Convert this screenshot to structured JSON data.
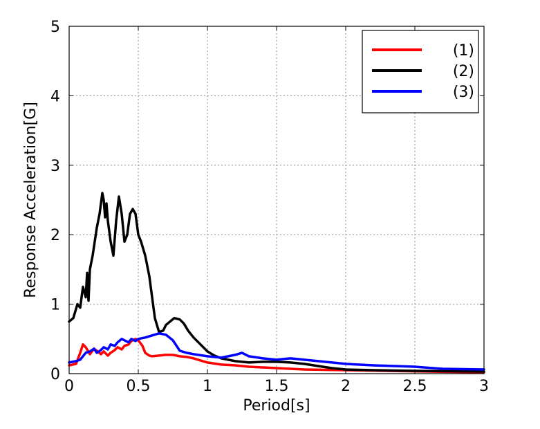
{
  "chart_data": {
    "type": "line",
    "xlabel": "Period[s]",
    "ylabel": "Response Acceleration[G]",
    "xlim": [
      0,
      3
    ],
    "ylim": [
      0,
      5
    ],
    "xticks": [
      "0",
      "0.5",
      "1",
      "1.5",
      "2",
      "2.5",
      "3"
    ],
    "yticks": [
      "0",
      "1",
      "2",
      "3",
      "4",
      "5"
    ],
    "grid": true,
    "legend_position": "top-right",
    "series": [
      {
        "name": "(1)",
        "color": "#ff0000",
        "x": [
          0,
          0.05,
          0.08,
          0.1,
          0.12,
          0.15,
          0.18,
          0.2,
          0.23,
          0.25,
          0.28,
          0.3,
          0.33,
          0.35,
          0.38,
          0.4,
          0.43,
          0.45,
          0.48,
          0.5,
          0.53,
          0.55,
          0.58,
          0.6,
          0.65,
          0.7,
          0.75,
          0.8,
          0.85,
          0.9,
          1.0,
          1.1,
          1.2,
          1.3,
          1.5,
          1.7,
          2.0,
          2.3,
          2.6,
          3.0
        ],
        "y": [
          0.12,
          0.14,
          0.3,
          0.42,
          0.38,
          0.28,
          0.36,
          0.33,
          0.28,
          0.32,
          0.26,
          0.3,
          0.34,
          0.38,
          0.35,
          0.4,
          0.42,
          0.47,
          0.5,
          0.48,
          0.4,
          0.3,
          0.26,
          0.25,
          0.26,
          0.27,
          0.27,
          0.25,
          0.24,
          0.22,
          0.16,
          0.13,
          0.12,
          0.1,
          0.08,
          0.06,
          0.05,
          0.04,
          0.03,
          0.02
        ]
      },
      {
        "name": "(2)",
        "color": "#000000",
        "x": [
          0,
          0.03,
          0.06,
          0.08,
          0.1,
          0.12,
          0.13,
          0.14,
          0.15,
          0.17,
          0.2,
          0.22,
          0.24,
          0.25,
          0.26,
          0.27,
          0.28,
          0.3,
          0.32,
          0.34,
          0.36,
          0.38,
          0.4,
          0.42,
          0.44,
          0.46,
          0.48,
          0.5,
          0.52,
          0.55,
          0.58,
          0.6,
          0.62,
          0.65,
          0.68,
          0.7,
          0.73,
          0.76,
          0.8,
          0.83,
          0.86,
          0.9,
          0.95,
          1.0,
          1.05,
          1.1,
          1.2,
          1.3,
          1.4,
          1.5,
          1.6,
          1.7,
          1.8,
          1.9,
          2.0,
          2.2,
          2.5,
          3.0
        ],
        "y": [
          0.75,
          0.8,
          1.0,
          0.95,
          1.25,
          1.1,
          1.45,
          1.05,
          1.5,
          1.7,
          2.1,
          2.3,
          2.6,
          2.5,
          2.25,
          2.45,
          2.2,
          1.9,
          1.7,
          2.2,
          2.55,
          2.3,
          1.9,
          2.0,
          2.3,
          2.37,
          2.3,
          2.0,
          1.9,
          1.7,
          1.4,
          1.1,
          0.8,
          0.6,
          0.62,
          0.7,
          0.75,
          0.8,
          0.78,
          0.72,
          0.62,
          0.52,
          0.42,
          0.32,
          0.26,
          0.22,
          0.18,
          0.16,
          0.17,
          0.17,
          0.16,
          0.14,
          0.11,
          0.08,
          0.06,
          0.05,
          0.04,
          0.03
        ]
      },
      {
        "name": "(3)",
        "color": "#0000ff",
        "x": [
          0,
          0.05,
          0.08,
          0.1,
          0.12,
          0.15,
          0.18,
          0.2,
          0.23,
          0.25,
          0.28,
          0.3,
          0.33,
          0.35,
          0.38,
          0.4,
          0.43,
          0.45,
          0.48,
          0.5,
          0.55,
          0.6,
          0.65,
          0.7,
          0.75,
          0.8,
          0.85,
          0.9,
          1.0,
          1.1,
          1.2,
          1.25,
          1.3,
          1.4,
          1.5,
          1.6,
          1.7,
          1.8,
          2.0,
          2.2,
          2.5,
          2.7,
          3.0
        ],
        "y": [
          0.16,
          0.18,
          0.2,
          0.25,
          0.3,
          0.32,
          0.36,
          0.3,
          0.34,
          0.38,
          0.35,
          0.42,
          0.4,
          0.45,
          0.5,
          0.48,
          0.45,
          0.5,
          0.47,
          0.5,
          0.52,
          0.55,
          0.58,
          0.56,
          0.48,
          0.33,
          0.3,
          0.28,
          0.25,
          0.23,
          0.27,
          0.3,
          0.25,
          0.22,
          0.2,
          0.22,
          0.2,
          0.18,
          0.14,
          0.12,
          0.1,
          0.07,
          0.06
        ]
      }
    ]
  }
}
